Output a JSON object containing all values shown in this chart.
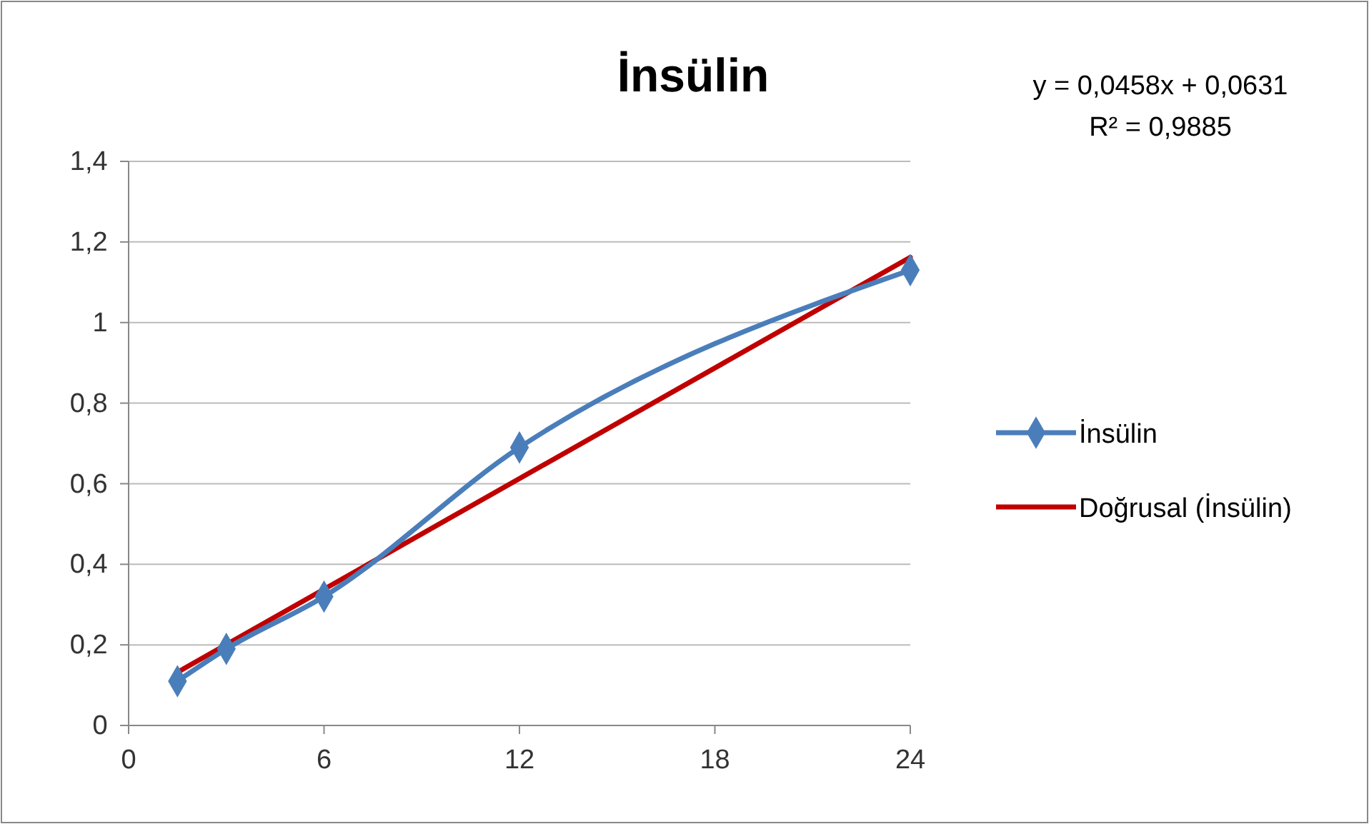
{
  "chart_data": {
    "type": "line",
    "title": "İnsülin",
    "annotations": [
      "y = 0,0458x + 0,0631",
      "R² = 0,9885"
    ],
    "xlim": [
      0,
      24
    ],
    "xticks": [
      0,
      6,
      12,
      18,
      24
    ],
    "ylim": [
      0,
      1.4
    ],
    "yticks": [
      0,
      {
        "value": 0.2,
        "label": "0,2"
      },
      {
        "value": 0.4,
        "label": "0,4"
      },
      {
        "value": 0.6,
        "label": "0,6"
      },
      {
        "value": 0.8,
        "label": "0,8"
      },
      1,
      {
        "value": 1.2,
        "label": "1,2"
      },
      {
        "value": 1.4,
        "label": "1,4"
      }
    ],
    "grid": "y",
    "legend": "right",
    "series": [
      {
        "name": "İnsülin",
        "color": "#4a7ebb",
        "marker": "diamond",
        "x": [
          1.5,
          3,
          6,
          12,
          24
        ],
        "values": [
          0.11,
          0.19,
          0.32,
          0.69,
          1.13
        ]
      },
      {
        "name": "Doğrusal (İnsülin)",
        "color": "#c00000",
        "marker": "none",
        "x": [
          1.5,
          24
        ],
        "values": [
          0.132,
          1.162
        ]
      }
    ]
  }
}
